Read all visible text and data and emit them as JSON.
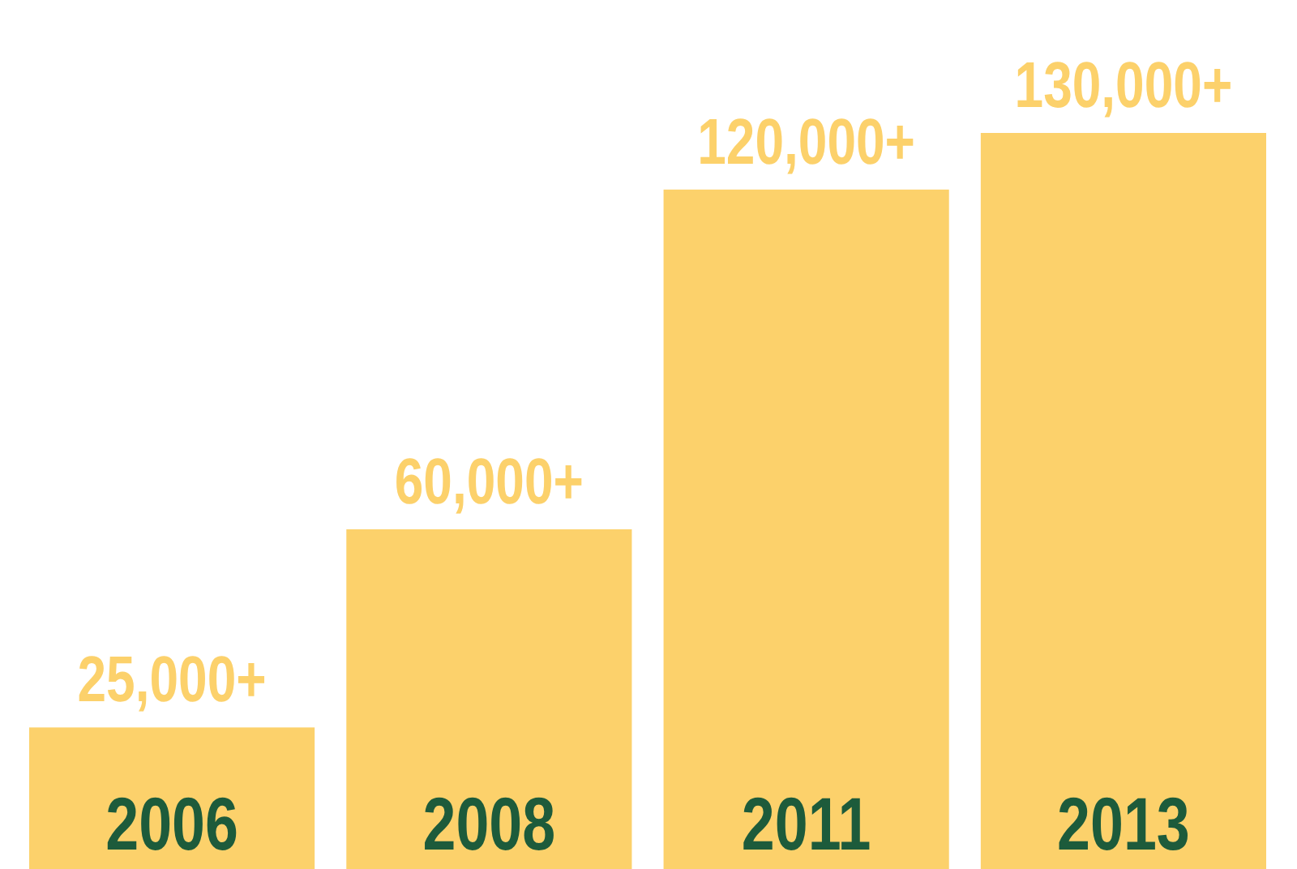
{
  "chart_data": {
    "type": "bar",
    "categories": [
      "2006",
      "2008",
      "2011",
      "2013"
    ],
    "values": [
      25000,
      60000,
      120000,
      130000
    ],
    "value_labels": [
      "25,000+",
      "60,000+",
      "120,000+",
      "130,000+"
    ],
    "color": "#fcd16b"
  }
}
